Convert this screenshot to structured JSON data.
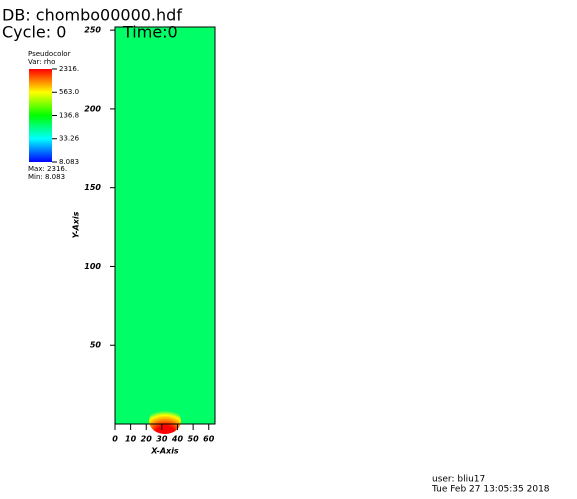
{
  "chart_data": {
    "type": "pseudocolor",
    "db_label": "DB: chombo00000.hdf",
    "cycle_label": "Cycle: 0",
    "time_label": "Time:0",
    "x_label": "X-Axis",
    "y_label": "Y-Axis",
    "xlim": [
      0,
      64
    ],
    "xticks": [
      0,
      10,
      20,
      30,
      40,
      50,
      60
    ],
    "ylim": [
      0,
      252
    ],
    "yticks": [
      50,
      100,
      150,
      200,
      250
    ],
    "field_color": "#00ff66",
    "legend": {
      "title": "Pseudocolor",
      "variable": "Var: rho",
      "log_scale": true,
      "range": [
        8.083,
        2316
      ],
      "ticks": [
        {
          "value": 2316,
          "label": "2316."
        },
        {
          "value": 563,
          "label": "563.0"
        },
        136.8,
        33.26,
        8.083
      ],
      "max_label": "Max: 2316.",
      "min_label": "Min: 8.083"
    },
    "user": "user: bliu17",
    "date": "Tue Feb 27 13:05:35 2018"
  }
}
